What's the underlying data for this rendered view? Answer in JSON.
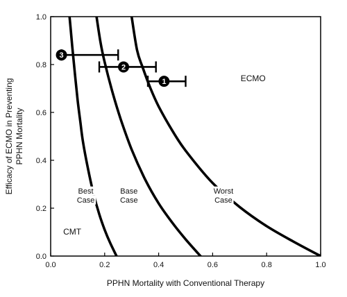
{
  "chart_data": {
    "type": "line",
    "title": "",
    "xlabel": "PPHN Mortality with Conventional Therapy",
    "ylabel": "Efficacy of ECMO in Preventing PPHN Mortality",
    "xlim": [
      0.0,
      1.0
    ],
    "ylim": [
      0.0,
      1.0
    ],
    "xticks": [
      0.0,
      0.2,
      0.4,
      0.6,
      0.8,
      1.0
    ],
    "yticks": [
      0.0,
      0.2,
      0.4,
      0.6,
      0.8,
      1.0
    ],
    "xtick_labels": [
      "0.0",
      "0.2",
      "0.4",
      "0.6",
      "0.8",
      "1.0"
    ],
    "ytick_labels": [
      "0.0",
      "0.2",
      "0.4",
      "0.6",
      "0.8",
      "1.0"
    ],
    "grid": false,
    "series": [
      {
        "name": "Best Case",
        "label_lines": [
          "Best",
          "Case"
        ],
        "label_at": [
          0.13,
          0.25
        ],
        "x": [
          0.244,
          0.22,
          0.2,
          0.18,
          0.16,
          0.14,
          0.12,
          0.11,
          0.1,
          0.09,
          0.08,
          0.074,
          0.07
        ],
        "y": [
          0.0,
          0.056,
          0.11,
          0.175,
          0.255,
          0.355,
          0.475,
          0.56,
          0.65,
          0.76,
          0.875,
          0.95,
          1.0
        ]
      },
      {
        "name": "Base Case",
        "label_lines": [
          "Base",
          "Case"
        ],
        "label_at": [
          0.29,
          0.25
        ],
        "x": [
          0.555,
          0.5,
          0.45,
          0.4,
          0.35,
          0.3,
          0.26,
          0.23,
          0.2,
          0.185,
          0.17
        ],
        "y": [
          0.0,
          0.07,
          0.14,
          0.22,
          0.32,
          0.445,
          0.57,
          0.68,
          0.81,
          0.89,
          1.0
        ]
      },
      {
        "name": "Worst Case",
        "label_lines": [
          "Worst",
          "Case"
        ],
        "label_at": [
          0.64,
          0.25
        ],
        "x": [
          1.0,
          0.9,
          0.8,
          0.7,
          0.6,
          0.5,
          0.45,
          0.4,
          0.37,
          0.34,
          0.32,
          0.3
        ],
        "y": [
          0.0,
          0.06,
          0.125,
          0.205,
          0.305,
          0.44,
          0.525,
          0.625,
          0.7,
          0.79,
          0.86,
          1.0
        ]
      }
    ],
    "points": [
      {
        "label": "1",
        "x": 0.42,
        "y": 0.73,
        "xerr": [
          0.36,
          0.5
        ]
      },
      {
        "label": "2",
        "x": 0.27,
        "y": 0.79,
        "xerr": [
          0.18,
          0.39
        ]
      },
      {
        "label": "3",
        "x": 0.04,
        "y": 0.84,
        "xerr": [
          0.04,
          0.25
        ]
      }
    ],
    "annotations": [
      {
        "text": "ECMO",
        "x": 0.75,
        "y": 0.73
      },
      {
        "text": "CMT",
        "x": 0.08,
        "y": 0.09
      }
    ]
  }
}
